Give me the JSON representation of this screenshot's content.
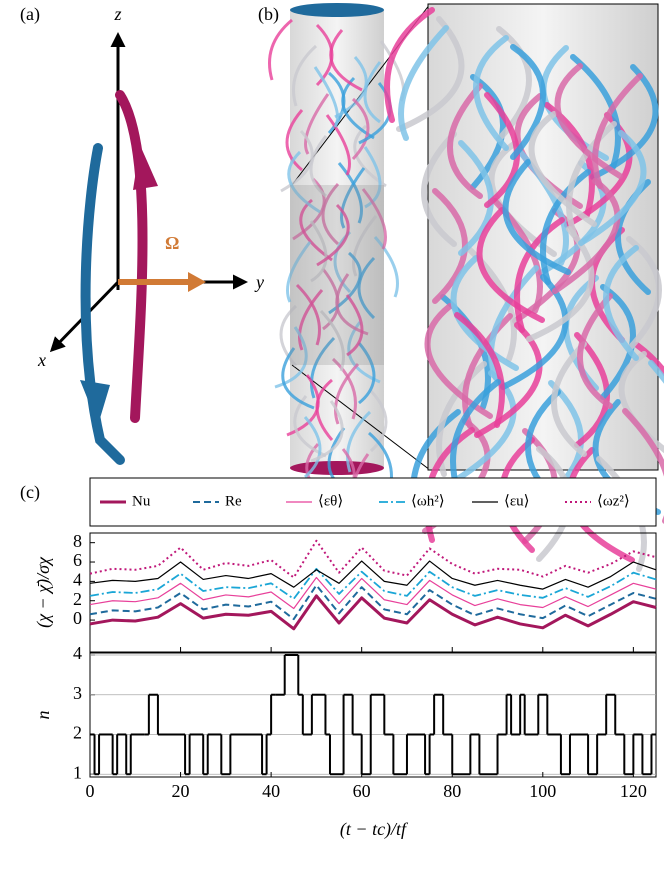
{
  "figure": {
    "panel_labels": [
      "(a)",
      "(b)",
      "(c)"
    ],
    "axis_names": {
      "z": "z",
      "y": "y",
      "x": "x",
      "rotation": "Ω"
    }
  },
  "chart_data": [
    {
      "type": "line",
      "ylabel": "(χ − χ̄)/σχ",
      "x": [
        0,
        5,
        10,
        15,
        20,
        25,
        30,
        35,
        40,
        45,
        50,
        55,
        60,
        65,
        70,
        75,
        80,
        85,
        90,
        95,
        100,
        105,
        110,
        115,
        120,
        125
      ],
      "series": [
        {
          "name": "Nu",
          "color": "#a3175c",
          "style": "solid-thick",
          "values": [
            -0.4,
            0,
            -0.1,
            0.3,
            1.7,
            0.2,
            0.6,
            0.5,
            0.9,
            -0.9,
            2.5,
            -0.3,
            2.3,
            0.2,
            -0.3,
            2.1,
            0.6,
            -0.5,
            0.3,
            -0.4,
            -0.8,
            0.5,
            -0.6,
            0.6,
            1.9,
            1.3
          ]
        },
        {
          "name": "Re",
          "color": "#1f6a9c",
          "style": "dashed",
          "values": [
            0.6,
            1.0,
            0.9,
            1.3,
            2.8,
            1.1,
            1.6,
            1.4,
            1.9,
            0.1,
            3.6,
            0.7,
            3.4,
            1.1,
            0.6,
            3.1,
            1.6,
            0.5,
            1.2,
            0.6,
            0.2,
            1.5,
            0.4,
            1.6,
            2.8,
            2.2
          ]
        },
        {
          "name": "⟨εθ⟩",
          "color": "#e8409a",
          "style": "solid-thin",
          "values": [
            1.6,
            2.0,
            1.9,
            2.3,
            3.8,
            2.1,
            2.6,
            2.4,
            2.9,
            1.2,
            4.4,
            1.7,
            4.3,
            2.1,
            1.6,
            4.1,
            2.6,
            1.5,
            2.2,
            1.6,
            1.3,
            2.4,
            1.4,
            2.6,
            3.8,
            3.2
          ]
        },
        {
          "name": "⟨ωh²⟩",
          "color": "#1aa6d6",
          "style": "dashdot",
          "values": [
            2.5,
            2.9,
            2.8,
            3.2,
            4.8,
            3.0,
            3.4,
            3.3,
            3.8,
            2.2,
            5.3,
            2.7,
            5.0,
            3.0,
            2.5,
            5.0,
            3.4,
            2.5,
            3.1,
            2.6,
            2.3,
            3.3,
            2.4,
            3.5,
            4.9,
            4.2
          ]
        },
        {
          "name": "⟨εu⟩",
          "color": "#000000",
          "style": "solid-thin",
          "values": [
            3.8,
            4.1,
            4.0,
            4.3,
            6.0,
            4.2,
            4.6,
            4.3,
            4.8,
            3.4,
            5.2,
            3.8,
            6.1,
            4.0,
            3.6,
            6.1,
            4.3,
            3.6,
            4.1,
            3.6,
            3.2,
            4.2,
            3.4,
            4.5,
            6.0,
            5.2
          ]
        },
        {
          "name": "⟨ωz²⟩",
          "color": "#c0187a",
          "style": "dotted",
          "values": [
            4.8,
            5.3,
            5.2,
            5.6,
            7.5,
            5.2,
            5.9,
            5.6,
            6.2,
            4.4,
            8.2,
            4.9,
            7.5,
            5.1,
            4.6,
            7.4,
            5.8,
            4.8,
            5.3,
            5.2,
            4.5,
            5.6,
            4.9,
            5.8,
            7.1,
            6.5
          ]
        }
      ],
      "xlim": [
        0,
        125
      ],
      "xticks": [
        0,
        20,
        40,
        60,
        80,
        100,
        120
      ],
      "ylim": [
        -3.3,
        9
      ],
      "yticks": [
        0,
        2,
        4,
        6,
        8
      ]
    },
    {
      "type": "step",
      "ylabel": "n",
      "xlabel": "(t − tc)/tf",
      "x": [
        0,
        1,
        2,
        5,
        6,
        8,
        9,
        12,
        13,
        15,
        21,
        22,
        25,
        26,
        29,
        31,
        38,
        39,
        40,
        41,
        43,
        46,
        47,
        49,
        52,
        53,
        56,
        58,
        60,
        62,
        65,
        67,
        70,
        74,
        75,
        76,
        78,
        80,
        84,
        86,
        90,
        92,
        93,
        95,
        96,
        99,
        101,
        104,
        106,
        110,
        112,
        114,
        116,
        118,
        120,
        122,
        124,
        125
      ],
      "values": [
        2,
        1,
        2,
        1,
        2,
        1,
        2,
        2,
        3,
        2,
        1,
        2,
        1,
        2,
        1,
        2,
        1,
        2,
        3,
        3,
        4,
        3,
        2,
        3,
        2,
        1,
        3,
        2,
        1,
        3,
        2,
        1,
        2,
        1,
        2,
        3,
        2,
        1,
        2,
        1,
        2,
        3,
        2,
        3,
        2,
        3,
        2,
        1,
        2,
        1,
        2,
        3,
        2,
        1,
        2,
        1,
        2,
        2
      ],
      "color": "#000000",
      "xlim": [
        0,
        125
      ],
      "xticks": [
        0,
        20,
        40,
        60,
        80,
        100,
        120
      ],
      "ylim": [
        0.93,
        4.05
      ],
      "yticks": [
        1,
        2,
        3,
        4
      ],
      "grid": true
    }
  ]
}
